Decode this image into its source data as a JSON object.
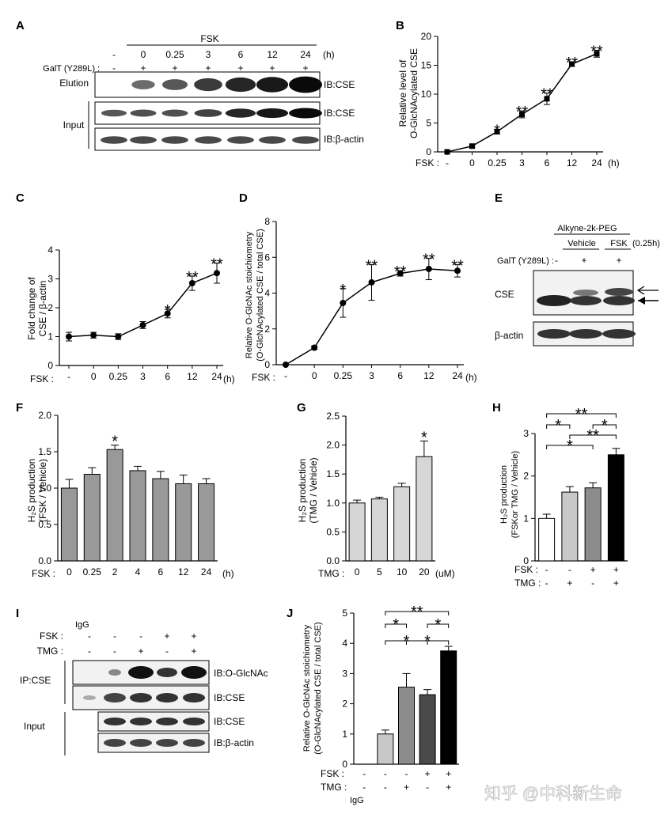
{
  "watermark": "知乎 @中科新生命",
  "panelA": {
    "label": "A",
    "fsk": "FSK",
    "unit": "(h)",
    "galt": "GalT (Y289L)",
    "lanes": [
      "-",
      "0",
      "0.25",
      "3",
      "6",
      "12",
      "24"
    ],
    "galt_signs": [
      "-",
      "+",
      "+",
      "+",
      "+",
      "+",
      "+"
    ],
    "elution": "Elution",
    "input": "Input",
    "ib1": "IB:CSE",
    "ib2": "IB:CSE",
    "ib3": "IB:β-actin",
    "elution_intensity": [
      0.0,
      0.3,
      0.45,
      0.65,
      0.8,
      0.9,
      1.0
    ],
    "input_intensity": [
      0.45,
      0.5,
      0.5,
      0.6,
      0.8,
      0.9,
      1.0
    ],
    "actin_intensity": [
      0.55,
      0.55,
      0.55,
      0.55,
      0.55,
      0.55,
      0.55
    ]
  },
  "panelB": {
    "label": "B",
    "ylabel1": "Relative level of",
    "ylabel2": "O-GlcNAcylated CSE",
    "xprefix": "FSK :",
    "unit": "(h)"
  },
  "panelC": {
    "label": "C",
    "ylabel1": "Fold change of",
    "ylabel2": "CSE / β-actin",
    "xprefix": "FSK :",
    "unit": "(h)"
  },
  "panelD": {
    "label": "D",
    "ylabel1": "Relative O-GlcNAc stoichiometry",
    "ylabel2": "(O-GlcNAcylated CSE / total CSE)",
    "xprefix": "FSK :",
    "unit": "(h)"
  },
  "panelE": {
    "label": "E",
    "alkyne": "Alkyne-2k-PEG",
    "vehicle": "Vehicle",
    "fsk": "FSK",
    "time": "(0.25h)",
    "galt": "GalT (Y289L) :",
    "signs": [
      "-",
      "+",
      "+"
    ],
    "cse": "CSE",
    "actin": "β-actin"
  },
  "panelF": {
    "label": "F",
    "ylabel1": "H₂S production",
    "ylabel2": "(FSK / Vehicle)",
    "xprefix": "FSK :",
    "unit": "(h)"
  },
  "panelG": {
    "label": "G",
    "ylabel1": "H₂S production",
    "ylabel2": "(TMG / Vehicle)",
    "xprefix": "TMG :",
    "unit": "(uM)"
  },
  "panelH": {
    "label": "H",
    "ylabel1": "H₂S production",
    "ylabel2": "(FSKor TMG / Vehicle)",
    "fsk": "FSK :",
    "tmg": "TMG :",
    "fsk_signs": [
      "-",
      "-",
      "+",
      "+"
    ],
    "tmg_signs": [
      "-",
      "+",
      "-",
      "+"
    ]
  },
  "panelI": {
    "label": "I",
    "igg": "IgG",
    "fsk": "FSK :",
    "tmg": "TMG :",
    "fsk_signs": [
      "-",
      "-",
      "-",
      "+",
      "+"
    ],
    "tmg_signs": [
      "-",
      "-",
      "+",
      "-",
      "+"
    ],
    "ip": "IP:CSE",
    "input": "Input",
    "ib1": "IB:O-GlcNAc",
    "ib2": "IB:CSE",
    "ib3": "IB:CSE",
    "ib4": "IB:β-actin"
  },
  "panelJ": {
    "label": "J",
    "ylabel1": "Relative O-GlcNAc stoichiometry",
    "ylabel2": "(O-GlcNAcylated CSE / total CSE)",
    "fsk": "FSK :",
    "tmg": "TMG :",
    "igg": "IgG",
    "fsk_signs": [
      "-",
      "-",
      "-",
      "+",
      "+"
    ],
    "tmg_signs": [
      "-",
      "-",
      "+",
      "-",
      "+"
    ]
  },
  "chart_data": [
    {
      "panel": "B",
      "type": "line",
      "categories": [
        "-",
        "0",
        "0.25",
        "3",
        "6",
        "12",
        "24"
      ],
      "values": [
        0,
        1.0,
        3.5,
        6.5,
        9.2,
        15.2,
        17.0
      ],
      "errors": [
        0,
        0.2,
        0.4,
        0.6,
        1.0,
        0.4,
        0.6
      ],
      "sig": [
        "",
        "",
        "*",
        "**",
        "**",
        "**",
        "**"
      ],
      "ylim": [
        0,
        20
      ],
      "yticks": [
        0,
        5,
        10,
        15,
        20
      ]
    },
    {
      "panel": "C",
      "type": "line",
      "categories": [
        "-",
        "0",
        "0.25",
        "3",
        "6",
        "12",
        "24"
      ],
      "values": [
        1.0,
        1.05,
        1.0,
        1.4,
        1.8,
        2.85,
        3.2
      ],
      "errors": [
        0.15,
        0.1,
        0.1,
        0.12,
        0.15,
        0.25,
        0.35
      ],
      "sig": [
        "",
        "",
        "",
        "",
        "*",
        "**",
        "**"
      ],
      "ylim": [
        0,
        4
      ],
      "yticks": [
        0,
        1,
        2,
        3,
        4
      ]
    },
    {
      "panel": "D",
      "type": "line",
      "categories": [
        "-",
        "0",
        "0.25",
        "3",
        "6",
        "12",
        "24"
      ],
      "values": [
        0,
        0.95,
        3.45,
        4.6,
        5.1,
        5.35,
        5.25
      ],
      "errors": [
        0,
        0.1,
        0.8,
        1.0,
        0.15,
        0.6,
        0.35
      ],
      "sig": [
        "",
        "",
        "*",
        "**",
        "**",
        "**",
        "**"
      ],
      "ylim": [
        0,
        8
      ],
      "yticks": [
        0,
        2,
        4,
        6,
        8
      ]
    },
    {
      "panel": "F",
      "type": "bar",
      "categories": [
        "0",
        "0.25",
        "2",
        "4",
        "6",
        "12",
        "24"
      ],
      "values": [
        1.0,
        1.19,
        1.53,
        1.24,
        1.13,
        1.06,
        1.06
      ],
      "errors": [
        0.12,
        0.09,
        0.06,
        0.06,
        0.1,
        0.12,
        0.07
      ],
      "sig": [
        "",
        "",
        "*",
        "",
        "",
        "",
        ""
      ],
      "ylim": [
        0,
        2.0
      ],
      "yticks": [
        0,
        0.5,
        1.0,
        1.5,
        2.0
      ]
    },
    {
      "panel": "G",
      "type": "bar",
      "categories": [
        "0",
        "5",
        "10",
        "20"
      ],
      "values": [
        1.0,
        1.07,
        1.28,
        1.8
      ],
      "errors": [
        0.05,
        0.03,
        0.06,
        0.27
      ],
      "sig": [
        "",
        "",
        "",
        "*"
      ],
      "ylim": [
        0,
        2.5
      ],
      "yticks": [
        0,
        0.5,
        1.0,
        1.5,
        2.0,
        2.5
      ]
    },
    {
      "panel": "H",
      "type": "bar",
      "categories": [
        "-/-",
        "-/+",
        "+/-",
        "+/+"
      ],
      "values": [
        1.0,
        1.62,
        1.72,
        2.5
      ],
      "errors": [
        0.1,
        0.13,
        0.12,
        0.15
      ],
      "colors": [
        "#ffffff",
        "#c8c8c8",
        "#8c8c8c",
        "#000000"
      ],
      "ylim": [
        0,
        3
      ],
      "yticks": [
        0,
        1,
        2,
        3
      ]
    },
    {
      "panel": "J",
      "type": "bar",
      "categories": [
        "IgG",
        "-/-",
        "-/+",
        "+/-",
        "+/+"
      ],
      "values": [
        0,
        1.0,
        2.55,
        2.3,
        3.75
      ],
      "errors": [
        0,
        0.13,
        0.45,
        0.17,
        0.15
      ],
      "colors": [
        "#ffffff",
        "#c8c8c8",
        "#8c8c8c",
        "#4a4a4a",
        "#000000"
      ],
      "ylim": [
        0,
        5
      ],
      "yticks": [
        0,
        1,
        2,
        3,
        4,
        5
      ]
    }
  ]
}
